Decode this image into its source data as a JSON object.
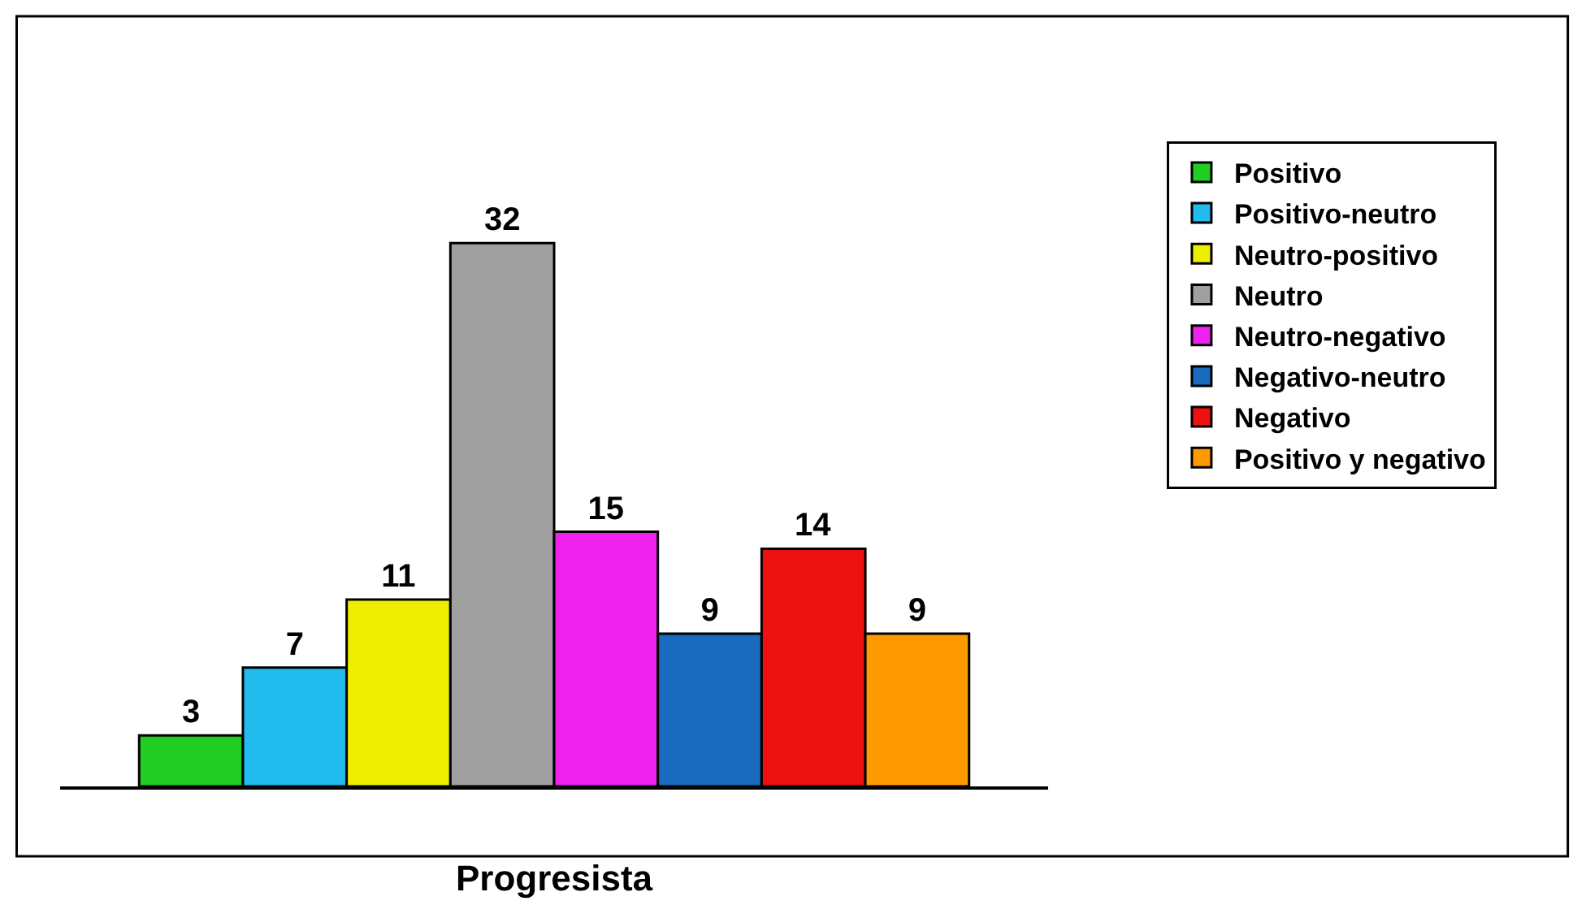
{
  "chart_data": {
    "type": "bar",
    "categories": [
      null
    ],
    "xlabel": "Progresista",
    "data_labels": true,
    "legend": "right",
    "tick_labels": false,
    "series": [
      {
        "name": "Positivo",
        "color": "#22cc22",
        "values": [
          3
        ]
      },
      {
        "name": "Positivo-neutro",
        "color": "#22bbee",
        "values": [
          7
        ]
      },
      {
        "name": "Neutro-positivo",
        "color": "#eeee00",
        "values": [
          11
        ]
      },
      {
        "name": "Neutro",
        "color": "#a0a0a0",
        "values": [
          32
        ]
      },
      {
        "name": "Neutro-negativo",
        "color": "#ee22ee",
        "values": [
          15
        ]
      },
      {
        "name": "Negativo-neutro",
        "color": "#1a6abf",
        "values": [
          9
        ]
      },
      {
        "name": "Negativo",
        "color": "#ee1111",
        "values": [
          14
        ]
      },
      {
        "name": "Positivo y negativo",
        "color": "#ff9900",
        "values": [
          9
        ]
      }
    ]
  }
}
